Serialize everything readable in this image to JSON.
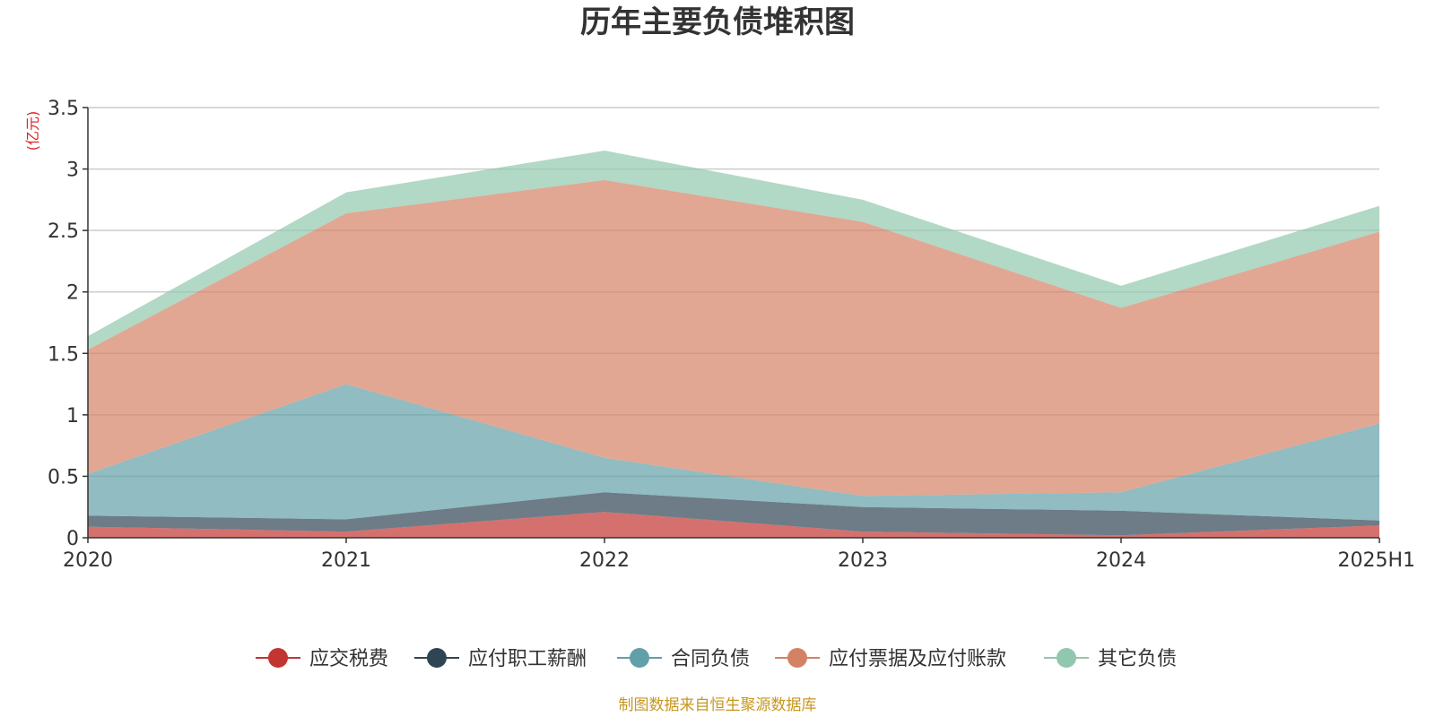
{
  "chart_data": {
    "type": "area",
    "stacked": true,
    "title": "历年主要负债堆积图",
    "y_unit": "(亿元)",
    "categories": [
      "2020",
      "2021",
      "2022",
      "2023",
      "2024",
      "2025H1"
    ],
    "ylim": [
      0,
      3.5
    ],
    "yticks": [
      "0",
      "0.5",
      "1",
      "1.5",
      "2",
      "2.5",
      "3",
      "3.5"
    ],
    "grid": true,
    "legend_position": "bottom",
    "series": [
      {
        "name": "应交税费",
        "color": "#c23531",
        "values": [
          0.09,
          0.05,
          0.21,
          0.05,
          0.02,
          0.1
        ]
      },
      {
        "name": "应付职工薪酬",
        "color": "#2f4554",
        "values": [
          0.09,
          0.1,
          0.16,
          0.2,
          0.2,
          0.04
        ]
      },
      {
        "name": "合同负债",
        "color": "#61a0a8",
        "values": [
          0.34,
          1.1,
          0.28,
          0.09,
          0.15,
          0.79
        ]
      },
      {
        "name": "应付票据及应付账款",
        "color": "#d48265",
        "values": [
          1.01,
          1.39,
          2.26,
          2.23,
          1.5,
          1.56
        ]
      },
      {
        "name": "其它负债",
        "color": "#91c7ae",
        "values": [
          0.11,
          0.17,
          0.24,
          0.18,
          0.18,
          0.21
        ]
      }
    ],
    "source": "制图数据来自恒生聚源数据库"
  }
}
